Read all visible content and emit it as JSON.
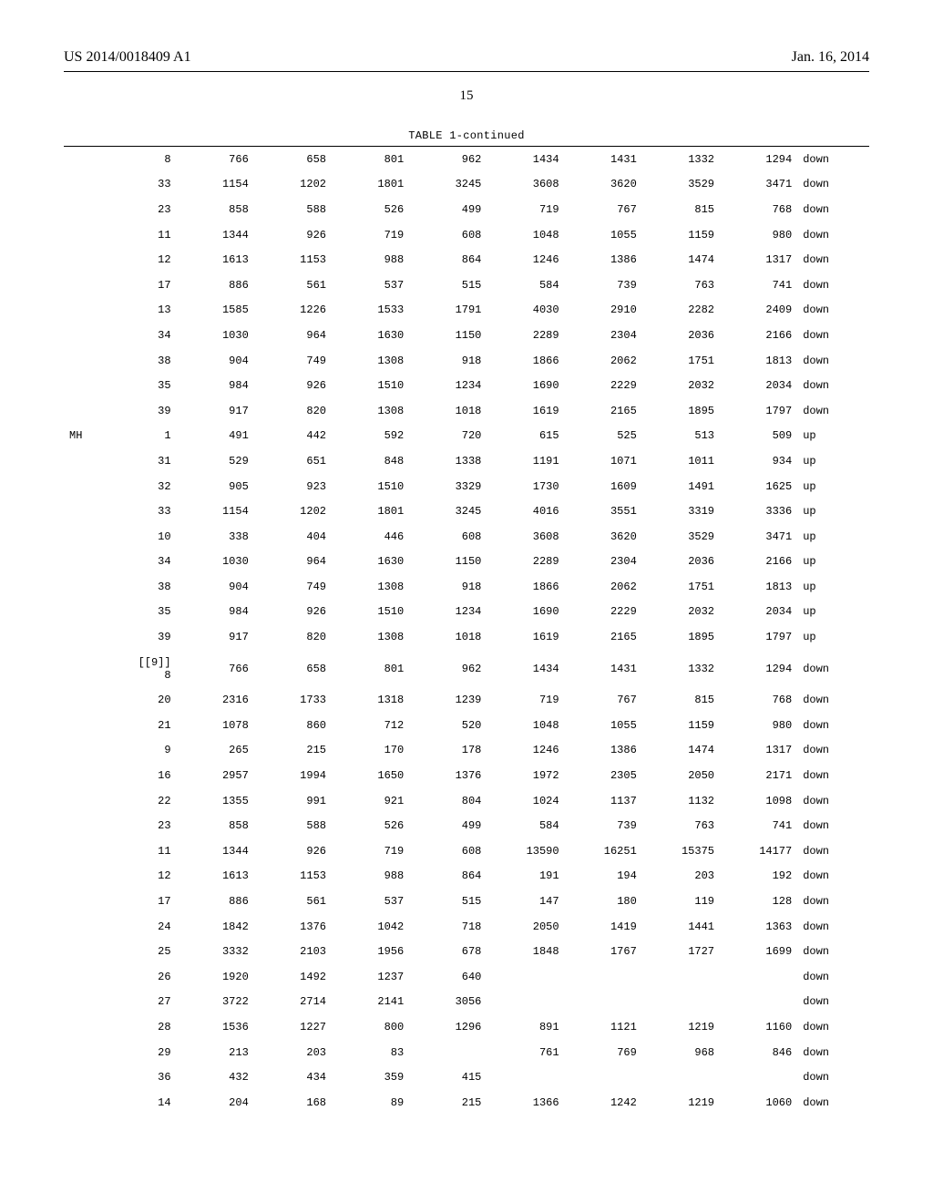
{
  "header": {
    "left": "US 2014/0018409 A1",
    "right": "Jan. 16, 2014"
  },
  "page_number": "15",
  "table": {
    "title": "TABLE 1-continued",
    "font": {
      "family": "Courier New",
      "body_size_pt": 9,
      "header_size_pt": 12
    },
    "colors": {
      "text": "#000000",
      "background": "#ffffff",
      "rule": "#000000"
    },
    "columns": [
      "label",
      "id",
      "v1",
      "v2",
      "v3",
      "v4",
      "v5",
      "v6",
      "v7",
      "v8",
      "dir"
    ],
    "column_align": [
      "left",
      "right",
      "right",
      "right",
      "right",
      "right",
      "right",
      "right",
      "right",
      "right",
      "left"
    ],
    "rows": [
      [
        "",
        "8",
        "766",
        "658",
        "801",
        "962",
        "1434",
        "1431",
        "1332",
        "1294",
        "down"
      ],
      [
        "",
        "33",
        "1154",
        "1202",
        "1801",
        "3245",
        "3608",
        "3620",
        "3529",
        "3471",
        "down"
      ],
      [
        "",
        "23",
        "858",
        "588",
        "526",
        "499",
        "719",
        "767",
        "815",
        "768",
        "down"
      ],
      [
        "",
        "11",
        "1344",
        "926",
        "719",
        "608",
        "1048",
        "1055",
        "1159",
        "980",
        "down"
      ],
      [
        "",
        "12",
        "1613",
        "1153",
        "988",
        "864",
        "1246",
        "1386",
        "1474",
        "1317",
        "down"
      ],
      [
        "",
        "17",
        "886",
        "561",
        "537",
        "515",
        "584",
        "739",
        "763",
        "741",
        "down"
      ],
      [
        "",
        "13",
        "1585",
        "1226",
        "1533",
        "1791",
        "4030",
        "2910",
        "2282",
        "2409",
        "down"
      ],
      [
        "",
        "34",
        "1030",
        "964",
        "1630",
        "1150",
        "2289",
        "2304",
        "2036",
        "2166",
        "down"
      ],
      [
        "",
        "38",
        "904",
        "749",
        "1308",
        "918",
        "1866",
        "2062",
        "1751",
        "1813",
        "down"
      ],
      [
        "",
        "35",
        "984",
        "926",
        "1510",
        "1234",
        "1690",
        "2229",
        "2032",
        "2034",
        "down"
      ],
      [
        "",
        "39",
        "917",
        "820",
        "1308",
        "1018",
        "1619",
        "2165",
        "1895",
        "1797",
        "down"
      ],
      [
        "MH",
        "1",
        "491",
        "442",
        "592",
        "720",
        "615",
        "525",
        "513",
        "509",
        "up"
      ],
      [
        "",
        "31",
        "529",
        "651",
        "848",
        "1338",
        "1191",
        "1071",
        "1011",
        "934",
        "up"
      ],
      [
        "",
        "32",
        "905",
        "923",
        "1510",
        "3329",
        "1730",
        "1609",
        "1491",
        "1625",
        "up"
      ],
      [
        "",
        "33",
        "1154",
        "1202",
        "1801",
        "3245",
        "4016",
        "3551",
        "3319",
        "3336",
        "up"
      ],
      [
        "",
        "10",
        "338",
        "404",
        "446",
        "608",
        "3608",
        "3620",
        "3529",
        "3471",
        "up"
      ],
      [
        "",
        "34",
        "1030",
        "964",
        "1630",
        "1150",
        "2289",
        "2304",
        "2036",
        "2166",
        "up"
      ],
      [
        "",
        "38",
        "904",
        "749",
        "1308",
        "918",
        "1866",
        "2062",
        "1751",
        "1813",
        "up"
      ],
      [
        "",
        "35",
        "984",
        "926",
        "1510",
        "1234",
        "1690",
        "2229",
        "2032",
        "2034",
        "up"
      ],
      [
        "",
        "39",
        "917",
        "820",
        "1308",
        "1018",
        "1619",
        "2165",
        "1895",
        "1797",
        "up"
      ],
      [
        "",
        "[[9]]\n8",
        "766",
        "658",
        "801",
        "962",
        "1434",
        "1431",
        "1332",
        "1294",
        "down"
      ],
      [
        "",
        "20",
        "2316",
        "1733",
        "1318",
        "1239",
        "719",
        "767",
        "815",
        "768",
        "down"
      ],
      [
        "",
        "21",
        "1078",
        "860",
        "712",
        "520",
        "1048",
        "1055",
        "1159",
        "980",
        "down"
      ],
      [
        "",
        "9",
        "265",
        "215",
        "170",
        "178",
        "1246",
        "1386",
        "1474",
        "1317",
        "down"
      ],
      [
        "",
        "16",
        "2957",
        "1994",
        "1650",
        "1376",
        "1972",
        "2305",
        "2050",
        "2171",
        "down"
      ],
      [
        "",
        "22",
        "1355",
        "991",
        "921",
        "804",
        "1024",
        "1137",
        "1132",
        "1098",
        "down"
      ],
      [
        "",
        "23",
        "858",
        "588",
        "526",
        "499",
        "584",
        "739",
        "763",
        "741",
        "down"
      ],
      [
        "",
        "11",
        "1344",
        "926",
        "719",
        "608",
        "13590",
        "16251",
        "15375",
        "14177",
        "down"
      ],
      [
        "",
        "12",
        "1613",
        "1153",
        "988",
        "864",
        "191",
        "194",
        "203",
        "192",
        "down"
      ],
      [
        "",
        "17",
        "886",
        "561",
        "537",
        "515",
        "147",
        "180",
        "119",
        "128",
        "down"
      ],
      [
        "",
        "24",
        "1842",
        "1376",
        "1042",
        "718",
        "2050",
        "1419",
        "1441",
        "1363",
        "down"
      ],
      [
        "",
        "25",
        "3332",
        "2103",
        "1956",
        "678",
        "1848",
        "1767",
        "1727",
        "1699",
        "down"
      ],
      [
        "",
        "26",
        "1920",
        "1492",
        "1237",
        "640",
        "",
        "",
        "",
        "",
        "down"
      ],
      [
        "",
        "27",
        "3722",
        "2714",
        "2141",
        "3056",
        "",
        "",
        "",
        "",
        "down"
      ],
      [
        "",
        "28",
        "1536",
        "1227",
        "800",
        "1296",
        "891",
        "1121",
        "1219",
        "1160",
        "down"
      ],
      [
        "",
        "29",
        "213",
        "203",
        "83",
        "",
        "761",
        "769",
        "968",
        "846",
        "down"
      ],
      [
        "",
        "36",
        "432",
        "434",
        "359",
        "415",
        "",
        "",
        "",
        "",
        "down"
      ],
      [
        "",
        "14",
        "204",
        "168",
        "89",
        "215",
        "1366",
        "1242",
        "1219",
        "1060",
        "down"
      ]
    ]
  }
}
